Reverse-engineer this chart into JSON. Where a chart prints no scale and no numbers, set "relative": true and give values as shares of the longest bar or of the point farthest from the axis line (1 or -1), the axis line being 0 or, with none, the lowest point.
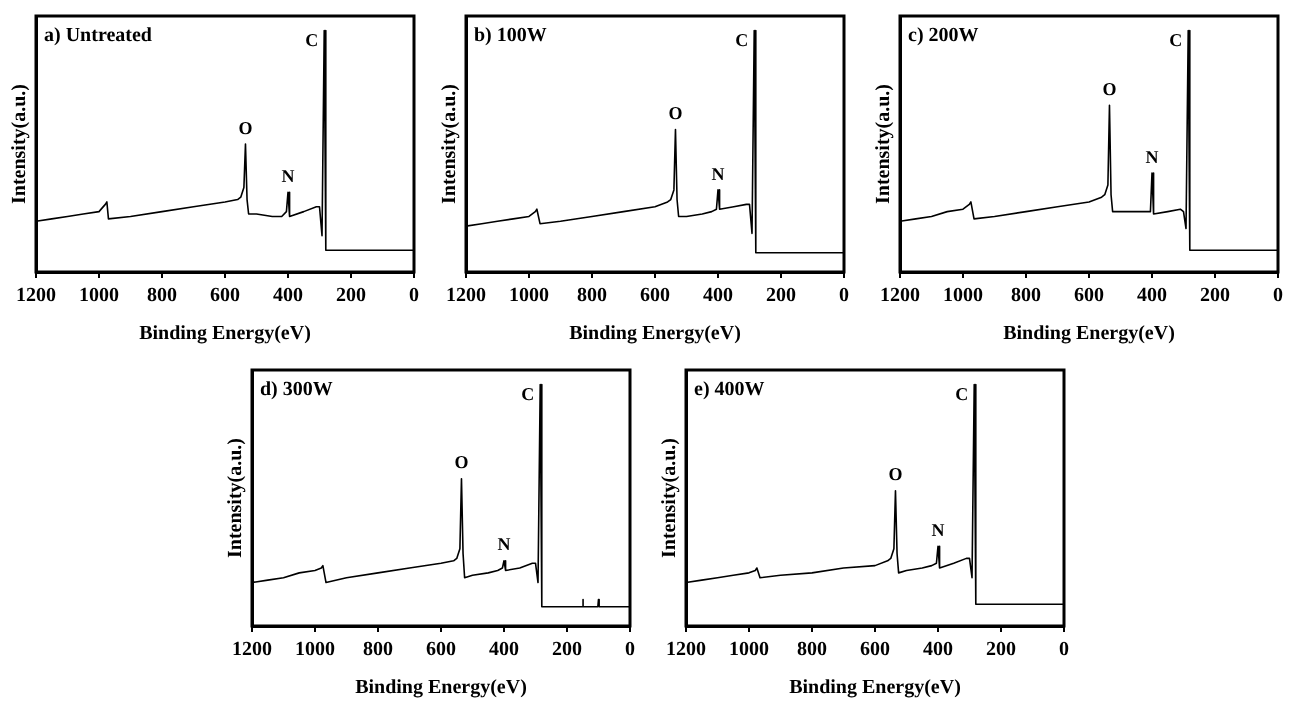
{
  "chart_data": [
    {
      "type": "line",
      "title": "a) Untreated",
      "xlabel": "Binding Energy(eV)",
      "ylabel": "Intensity(a.u.)",
      "relative": true,
      "xlim": [
        1200,
        0
      ],
      "xticks": [
        1200,
        1000,
        800,
        600,
        400,
        200,
        0
      ],
      "grid": false,
      "legend": false,
      "marker": "none",
      "tick_labels": "x",
      "x": [
        1200,
        1150,
        1100,
        1050,
        1000,
        980,
        975,
        970,
        900,
        800,
        700,
        600,
        560,
        550,
        540,
        535,
        530,
        525,
        500,
        450,
        420,
        405,
        400,
        395,
        350,
        310,
        300,
        292,
        285,
        280,
        200,
        100,
        0
      ],
      "series": [
        {
          "color": "#000000",
          "values": [
            0.21,
            0.22,
            0.23,
            0.24,
            0.25,
            0.28,
            0.29,
            0.22,
            0.23,
            0.25,
            0.27,
            0.29,
            0.3,
            0.31,
            0.35,
            0.53,
            0.3,
            0.24,
            0.24,
            0.23,
            0.23,
            0.25,
            0.33,
            0.23,
            0.25,
            0.27,
            0.27,
            0.15,
            1.0,
            0.09,
            0.09,
            0.09,
            0.09
          ]
        }
      ],
      "annotations": [
        {
          "text": "O",
          "x": 535,
          "y": 0.53
        },
        {
          "text": "N",
          "x": 400,
          "y": 0.33
        },
        {
          "text": "C",
          "x": 285,
          "y": 1.0
        }
      ]
    },
    {
      "type": "line",
      "title": "b) 100W",
      "xlabel": "Binding Energy(eV)",
      "ylabel": "Intensity(a.u.)",
      "relative": true,
      "xlim": [
        1200,
        0
      ],
      "xticks": [
        1200,
        1000,
        800,
        600,
        400,
        200,
        0
      ],
      "grid": false,
      "legend": false,
      "marker": "none",
      "tick_labels": "x",
      "x": [
        1200,
        1150,
        1100,
        1050,
        1000,
        980,
        975,
        965,
        900,
        800,
        700,
        600,
        560,
        550,
        540,
        535,
        530,
        525,
        500,
        450,
        420,
        405,
        400,
        395,
        350,
        310,
        300,
        292,
        285,
        280,
        200,
        100,
        0
      ],
      "series": [
        {
          "color": "#000000",
          "values": [
            0.19,
            0.2,
            0.21,
            0.22,
            0.23,
            0.25,
            0.26,
            0.2,
            0.21,
            0.23,
            0.25,
            0.27,
            0.29,
            0.3,
            0.34,
            0.59,
            0.3,
            0.23,
            0.23,
            0.24,
            0.25,
            0.26,
            0.34,
            0.26,
            0.27,
            0.28,
            0.28,
            0.16,
            1.0,
            0.08,
            0.08,
            0.08,
            0.08
          ]
        }
      ],
      "annotations": [
        {
          "text": "O",
          "x": 535,
          "y": 0.59
        },
        {
          "text": "N",
          "x": 400,
          "y": 0.34
        },
        {
          "text": "C",
          "x": 285,
          "y": 1.0
        }
      ]
    },
    {
      "type": "line",
      "title": "c) 200W",
      "xlabel": "Binding Energy(eV)",
      "ylabel": "Intensity(a.u.)",
      "relative": true,
      "xlim": [
        1200,
        0
      ],
      "xticks": [
        1200,
        1000,
        800,
        600,
        400,
        200,
        0
      ],
      "grid": false,
      "legend": false,
      "marker": "none",
      "tick_labels": "x",
      "x": [
        1200,
        1150,
        1100,
        1050,
        1000,
        980,
        975,
        965,
        900,
        800,
        700,
        600,
        560,
        550,
        540,
        535,
        530,
        525,
        500,
        450,
        420,
        405,
        400,
        395,
        350,
        310,
        300,
        292,
        285,
        280,
        200,
        100,
        0
      ],
      "series": [
        {
          "color": "#000000",
          "values": [
            0.21,
            0.22,
            0.23,
            0.25,
            0.26,
            0.28,
            0.29,
            0.22,
            0.23,
            0.25,
            0.27,
            0.29,
            0.31,
            0.32,
            0.36,
            0.69,
            0.32,
            0.25,
            0.25,
            0.25,
            0.25,
            0.25,
            0.41,
            0.24,
            0.25,
            0.26,
            0.25,
            0.18,
            1.0,
            0.09,
            0.09,
            0.09,
            0.09
          ]
        }
      ],
      "annotations": [
        {
          "text": "O",
          "x": 535,
          "y": 0.69
        },
        {
          "text": "N",
          "x": 400,
          "y": 0.41
        },
        {
          "text": "C",
          "x": 285,
          "y": 1.0
        }
      ]
    },
    {
      "type": "line",
      "title": "d) 300W",
      "xlabel": "Binding Energy(eV)",
      "ylabel": "Intensity(a.u.)",
      "relative": true,
      "xlim": [
        1200,
        0
      ],
      "xticks": [
        1200,
        1000,
        800,
        600,
        400,
        200,
        0
      ],
      "grid": false,
      "legend": false,
      "marker": "none",
      "tick_labels": "x",
      "x": [
        1200,
        1150,
        1100,
        1050,
        1000,
        980,
        975,
        965,
        900,
        800,
        700,
        600,
        560,
        550,
        540,
        535,
        530,
        525,
        500,
        450,
        420,
        405,
        400,
        395,
        350,
        310,
        300,
        292,
        285,
        280,
        200,
        152,
        150,
        148,
        102,
        100,
        98,
        0
      ],
      "series": [
        {
          "color": "#000000",
          "values": [
            0.18,
            0.19,
            0.2,
            0.22,
            0.23,
            0.24,
            0.25,
            0.18,
            0.2,
            0.22,
            0.24,
            0.26,
            0.27,
            0.28,
            0.32,
            0.61,
            0.3,
            0.2,
            0.21,
            0.22,
            0.23,
            0.24,
            0.27,
            0.23,
            0.24,
            0.26,
            0.26,
            0.18,
            1.0,
            0.08,
            0.08,
            0.08,
            0.11,
            0.08,
            0.08,
            0.11,
            0.08,
            0.08
          ]
        }
      ],
      "annotations": [
        {
          "text": "O",
          "x": 535,
          "y": 0.61
        },
        {
          "text": "N",
          "x": 400,
          "y": 0.27
        },
        {
          "text": "C",
          "x": 285,
          "y": 1.0
        }
      ]
    },
    {
      "type": "line",
      "title": "e) 400W",
      "xlabel": "Binding Energy(eV)",
      "ylabel": "Intensity(a.u.)",
      "relative": true,
      "xlim": [
        1200,
        0
      ],
      "xticks": [
        1200,
        1000,
        800,
        600,
        400,
        200,
        0
      ],
      "grid": false,
      "legend": false,
      "marker": "none",
      "tick_labels": "x",
      "x": [
        1200,
        1150,
        1100,
        1050,
        1000,
        980,
        975,
        965,
        900,
        800,
        700,
        600,
        560,
        550,
        540,
        535,
        530,
        525,
        500,
        450,
        420,
        405,
        400,
        395,
        350,
        310,
        300,
        292,
        285,
        280,
        200,
        100,
        0
      ],
      "series": [
        {
          "color": "#000000",
          "values": [
            0.18,
            0.19,
            0.2,
            0.21,
            0.22,
            0.23,
            0.24,
            0.2,
            0.21,
            0.22,
            0.24,
            0.25,
            0.27,
            0.28,
            0.32,
            0.56,
            0.3,
            0.22,
            0.23,
            0.24,
            0.25,
            0.26,
            0.33,
            0.24,
            0.26,
            0.28,
            0.28,
            0.2,
            1.0,
            0.09,
            0.09,
            0.09,
            0.09
          ]
        }
      ],
      "annotations": [
        {
          "text": "O",
          "x": 535,
          "y": 0.56
        },
        {
          "text": "N",
          "x": 400,
          "y": 0.33
        },
        {
          "text": "C",
          "x": 285,
          "y": 1.0
        }
      ]
    }
  ]
}
